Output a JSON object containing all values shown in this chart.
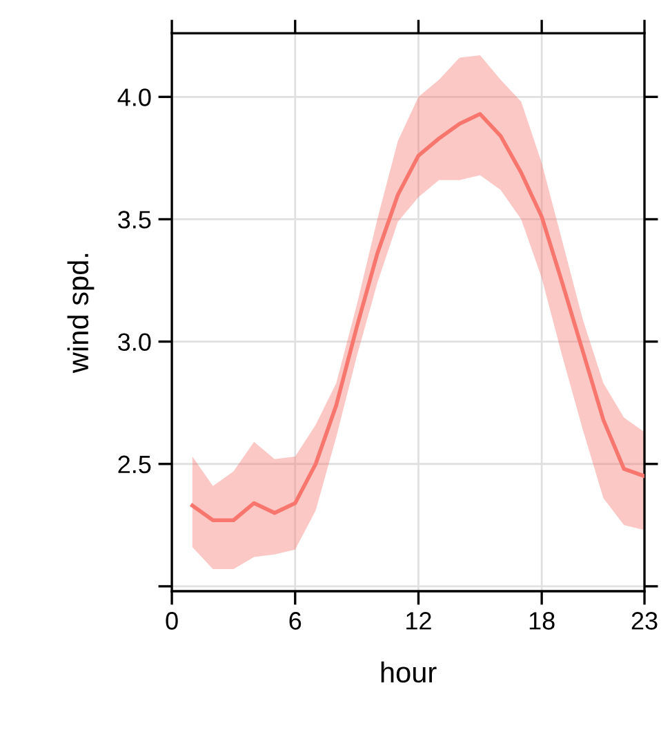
{
  "chart_data": {
    "type": "line",
    "xlabel": "hour",
    "ylabel": "wind spd.",
    "x": [
      1,
      2,
      3,
      4,
      5,
      6,
      7,
      8,
      9,
      10,
      11,
      12,
      13,
      14,
      15,
      16,
      17,
      18,
      19,
      20,
      21,
      22,
      23
    ],
    "series": [
      {
        "color": "#f8766d",
        "values": [
          2.33,
          2.27,
          2.27,
          2.34,
          2.3,
          2.34,
          2.5,
          2.74,
          3.06,
          3.36,
          3.6,
          3.76,
          3.83,
          3.89,
          3.93,
          3.84,
          3.69,
          3.51,
          3.24,
          2.96,
          2.68,
          2.48,
          2.45
        ],
        "upper": [
          2.53,
          2.41,
          2.47,
          2.59,
          2.52,
          2.53,
          2.66,
          2.83,
          3.15,
          3.5,
          3.82,
          4.0,
          4.07,
          4.16,
          4.17,
          4.07,
          3.98,
          3.73,
          3.41,
          3.09,
          2.83,
          2.69,
          2.63
        ],
        "lower": [
          2.16,
          2.07,
          2.07,
          2.12,
          2.13,
          2.15,
          2.31,
          2.61,
          2.94,
          3.24,
          3.49,
          3.59,
          3.66,
          3.66,
          3.68,
          3.62,
          3.5,
          3.26,
          2.94,
          2.64,
          2.36,
          2.25,
          2.23
        ]
      }
    ],
    "xlim": [
      0,
      23
    ],
    "xticks": [
      0,
      6,
      12,
      18,
      23
    ],
    "ylim": [
      1.98,
      4.26
    ],
    "yticks": [
      {
        "value": 2.0,
        "label": null
      },
      {
        "value": 2.5,
        "label": "2.5"
      },
      {
        "value": 3.0,
        "label": "3.0"
      },
      {
        "value": 3.5,
        "label": "3.5"
      },
      {
        "value": 4.0,
        "label": "4.0"
      }
    ],
    "grid": true,
    "line_style": "solid",
    "marker": "none"
  }
}
